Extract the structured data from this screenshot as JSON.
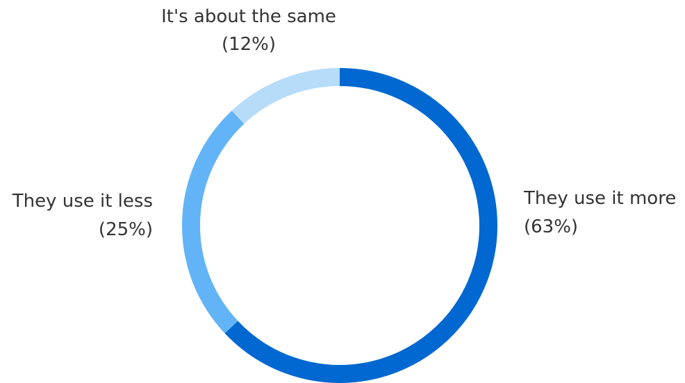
{
  "chart_data": {
    "type": "pie",
    "variant": "donut",
    "title": "",
    "start_angle_deg": 0,
    "direction": "clockwise",
    "slices": [
      {
        "label": "They use it more",
        "value": 63,
        "value_label": "(63%)",
        "color": "#0068d0"
      },
      {
        "label": "They use it less",
        "value": 25,
        "value_label": "(25%)",
        "color": "#62b4f6"
      },
      {
        "label": "It's about the same",
        "value": 12,
        "value_label": "(12%)",
        "color": "#b7dcfa"
      }
    ],
    "legend": "none"
  }
}
